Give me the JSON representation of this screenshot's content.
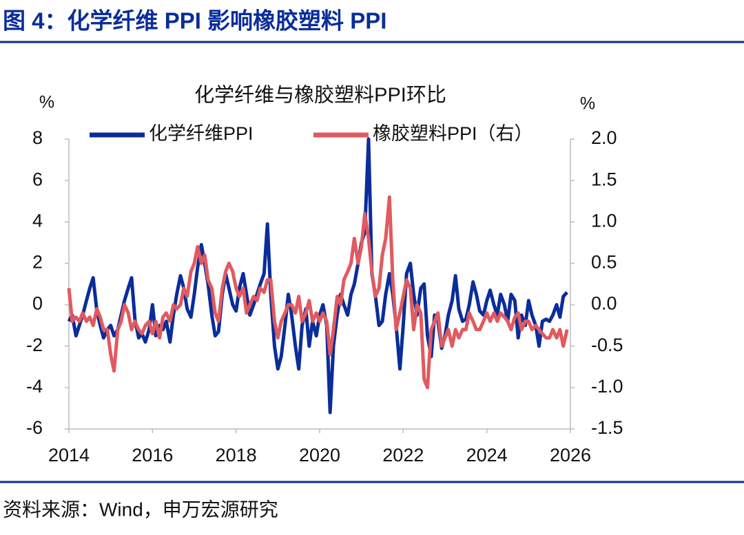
{
  "header": {
    "title": "图 4：化学纤维 PPI 影响橡胶塑料 PPI"
  },
  "chart_data": {
    "type": "line",
    "title": "化学纤维与橡胶塑料PPI环比",
    "y_unit": "%",
    "y2_unit": "%",
    "x": [
      2014,
      2014.08,
      2014.17,
      2014.25,
      2014.33,
      2014.42,
      2014.5,
      2014.58,
      2014.67,
      2014.75,
      2014.83,
      2014.92,
      2015,
      2015.08,
      2015.17,
      2015.25,
      2015.33,
      2015.42,
      2015.5,
      2015.58,
      2015.67,
      2015.75,
      2015.83,
      2015.92,
      2016,
      2016.08,
      2016.17,
      2016.25,
      2016.33,
      2016.42,
      2016.5,
      2016.58,
      2016.67,
      2016.75,
      2016.83,
      2016.92,
      2017,
      2017.08,
      2017.17,
      2017.25,
      2017.33,
      2017.42,
      2017.5,
      2017.58,
      2017.67,
      2017.75,
      2017.83,
      2017.92,
      2018,
      2018.08,
      2018.17,
      2018.25,
      2018.33,
      2018.42,
      2018.5,
      2018.58,
      2018.67,
      2018.75,
      2018.83,
      2018.92,
      2019,
      2019.08,
      2019.17,
      2019.25,
      2019.33,
      2019.42,
      2019.5,
      2019.58,
      2019.67,
      2019.75,
      2019.83,
      2019.92,
      2020,
      2020.08,
      2020.17,
      2020.25,
      2020.33,
      2020.42,
      2020.5,
      2020.58,
      2020.67,
      2020.75,
      2020.83,
      2020.92,
      2021,
      2021.08,
      2021.17,
      2021.25,
      2021.33,
      2021.42,
      2021.5,
      2021.58,
      2021.67,
      2021.75,
      2021.83,
      2021.92,
      2022,
      2022.08,
      2022.17,
      2022.25,
      2022.33,
      2022.42,
      2022.5,
      2022.58,
      2022.67,
      2022.75,
      2022.83,
      2022.92,
      2023,
      2023.08,
      2023.17,
      2023.25,
      2023.33,
      2023.42,
      2023.5,
      2023.58,
      2023.67,
      2023.75,
      2023.83,
      2023.92,
      2024,
      2024.08,
      2024.17,
      2024.25,
      2024.33,
      2024.42,
      2024.5,
      2024.58,
      2024.67,
      2024.75,
      2024.83,
      2024.92,
      2025,
      2025.08,
      2025.17,
      2025.25,
      2025.33,
      2025.42,
      2025.5,
      2025.58,
      2025.67,
      2025.75,
      2025.83,
      2025.92
    ],
    "series": [
      {
        "name": "化学纤维PPI",
        "color": "#0a2d9a",
        "axis": "y",
        "values": [
          -0.8,
          -0.5,
          -1.5,
          -1,
          -0.5,
          0.2,
          0.8,
          1.3,
          -0.3,
          -1,
          -1.6,
          -1.2,
          -1,
          -1.5,
          -1.2,
          -0.5,
          0.2,
          0.8,
          1.3,
          -0.7,
          -1.6,
          -1.4,
          -1.8,
          -1.2,
          0,
          -1.5,
          -1,
          -1.2,
          -0.8,
          -1.8,
          -0.5,
          0.5,
          1.4,
          0.8,
          -0.2,
          -0.6,
          0.5,
          1.8,
          2.9,
          2,
          1,
          -0.5,
          -1.5,
          -1.3,
          0.5,
          1.5,
          0.8,
          0,
          -0.3,
          0.8,
          1.5,
          0.5,
          -0.5,
          0,
          0.5,
          1,
          1.5,
          3.9,
          0.5,
          -2,
          -3.1,
          -2.5,
          -1,
          0.5,
          -0.5,
          -2,
          -3.1,
          -1,
          -0.2,
          -2,
          -0.8,
          -1.5,
          -0.5,
          0,
          -1,
          -5.2,
          -2,
          -0.5,
          0.5,
          0,
          -0.5,
          0.5,
          1,
          2,
          3,
          3.5,
          8,
          1.5,
          0.5,
          -1,
          -0.8,
          0.5,
          1.5,
          0.5,
          -1,
          -3.1,
          -1,
          1.5,
          2,
          0.5,
          -0.5,
          0.8,
          1,
          -1.5,
          -2.5,
          -0.5,
          -0.8,
          -2.1,
          -1.5,
          -0.5,
          0.2,
          1.4,
          -0.2,
          -0.8,
          -0.7,
          0,
          1.1,
          0.5,
          -0.3,
          -0.5,
          0.2,
          0.7,
          0,
          -0.5,
          0.5,
          0,
          -0.8,
          0.5,
          0.2,
          -1.6,
          -0.5,
          -1,
          0.2,
          -0.5,
          -1,
          -2,
          -0.8,
          -0.7,
          -0.8,
          -0.5,
          0,
          -0.6,
          0.4,
          0.6
        ]
      },
      {
        "name": "橡胶塑料PPI（右）",
        "color": "#e05a5f",
        "axis": "y2",
        "values": [
          0.2,
          -0.2,
          -0.15,
          -0.2,
          -0.1,
          -0.2,
          -0.15,
          -0.25,
          -0.05,
          -0.15,
          -0.3,
          -0.3,
          -0.6,
          -0.8,
          -0.3,
          -0.2,
          0,
          -0.1,
          -0.3,
          -0.2,
          -0.3,
          -0.35,
          -0.25,
          -0.2,
          -0.35,
          -0.2,
          -0.4,
          -0.15,
          -0.1,
          -0.2,
          0,
          -0.05,
          0,
          0.2,
          0.1,
          0.4,
          0.5,
          0.7,
          0.5,
          0.6,
          0.3,
          0.2,
          -0.1,
          -0.2,
          0.2,
          0.4,
          0.5,
          0.4,
          0.2,
          0.1,
          0.2,
          -0.1,
          0,
          0.1,
          0.05,
          0.2,
          0.15,
          0.3,
          0.3,
          -0.2,
          -0.4,
          -0.2,
          -0.1,
          0,
          0,
          -0.1,
          0.1,
          -0.2,
          -0.1,
          0.05,
          -0.2,
          -0.1,
          -0.2,
          -0.1,
          -0.2,
          -0.6,
          -0.3,
          0.1,
          0,
          0.3,
          0.4,
          0.5,
          0.8,
          0.5,
          0.7,
          1.1,
          0.8,
          0.4,
          0.1,
          0.2,
          0.6,
          0.8,
          1.3,
          0.3,
          -0.3,
          -0.1,
          0.1,
          0.3,
          0.2,
          -0.3,
          0,
          -0.1,
          -0.9,
          -1,
          -0.3,
          -0.2,
          -0.1,
          -0.5,
          -0.4,
          -0.3,
          -0.5,
          -0.3,
          -0.4,
          -0.3,
          -0.3,
          -0.1,
          -0.2,
          -0.3,
          -0.3,
          -0.2,
          -0.1,
          -0.2,
          -0.1,
          -0.2,
          -0.1,
          -0.15,
          -0.2,
          -0.3,
          -0.15,
          -0.1,
          -0.3,
          -0.2,
          -0.2,
          -0.3,
          -0.25,
          -0.3,
          -0.35,
          -0.4,
          -0.4,
          -0.3,
          -0.4,
          -0.3,
          -0.5,
          -0.3
        ]
      }
    ],
    "xlim": [
      2014,
      2026
    ],
    "xticks": [
      2014,
      2016,
      2018,
      2020,
      2022,
      2024,
      2026
    ],
    "ylim": [
      -6,
      8
    ],
    "yticks": [
      -6,
      -4,
      -2,
      0,
      2,
      4,
      6,
      8
    ],
    "y2lim": [
      -1.5,
      2
    ],
    "y2ticks": [
      {
        "value": -1.5,
        "label": "-1.5"
      },
      {
        "value": -1,
        "label": "-1.0"
      },
      {
        "value": -0.5,
        "label": "-0.5"
      },
      {
        "value": 0,
        "label": "0.0"
      },
      {
        "value": 0.5,
        "label": "0.5"
      },
      {
        "value": 1,
        "label": "1.0"
      },
      {
        "value": 1.5,
        "label": "1.5"
      },
      {
        "value": 2,
        "label": "2.0"
      }
    ],
    "grid": false
  },
  "source": "资料来源：Wind，申万宏源研究"
}
